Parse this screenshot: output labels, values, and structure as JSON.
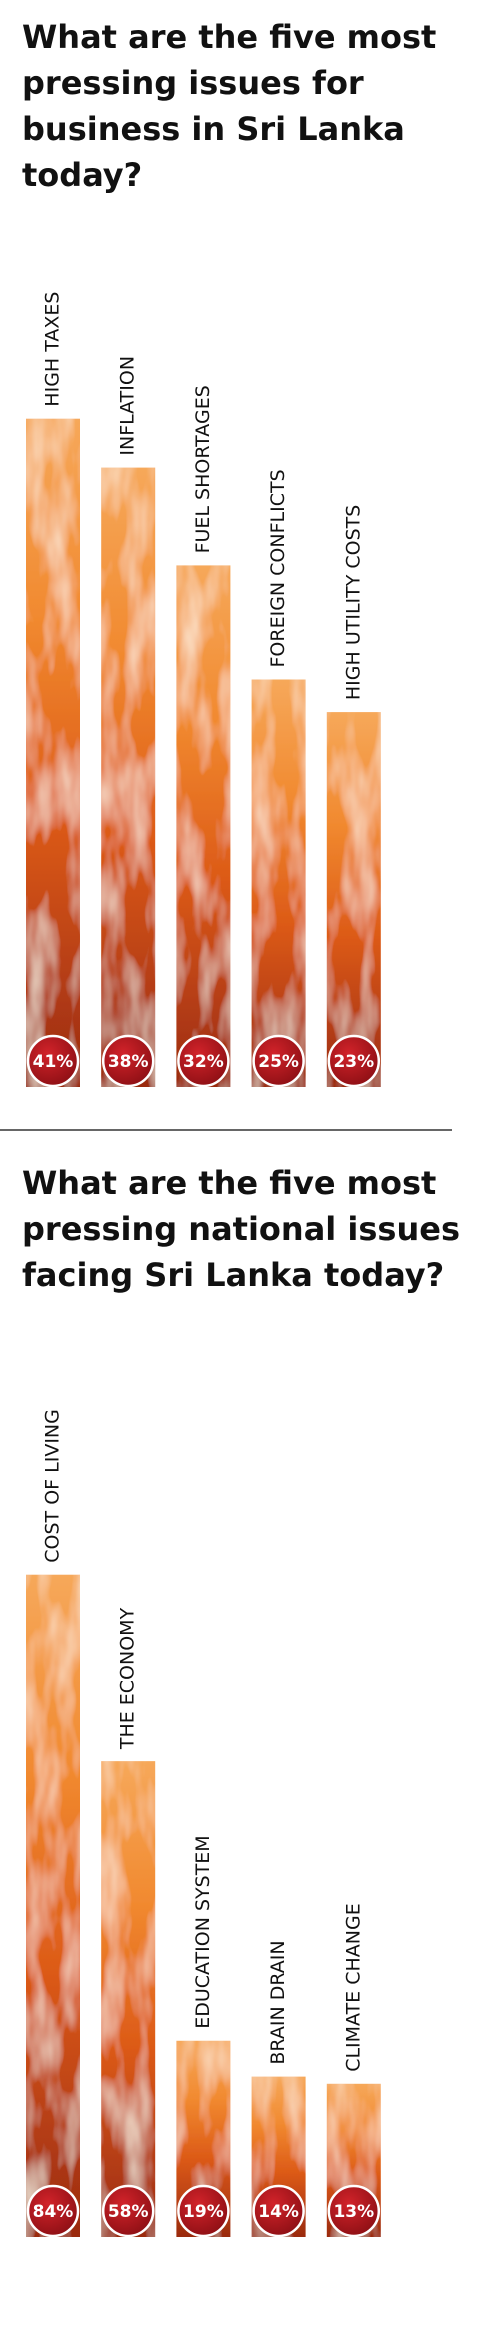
{
  "chart_data": [
    {
      "type": "bar",
      "title": "What are the five most pressing issues for business in Sri Lanka today?",
      "categories": [
        "HIGH TAXES",
        "INFLATION",
        "FUEL SHORTAGES",
        "FOREIGN CONFLICTS",
        "HIGH UTILITY COSTS"
      ],
      "values": [
        41,
        38,
        32,
        25,
        23
      ],
      "value_labels": [
        "41%",
        "38%",
        "32%",
        "25%",
        "23%"
      ]
    },
    {
      "type": "bar",
      "title": "What are the five most pressing national issues facing Sri Lanka today?",
      "categories": [
        "COST OF LIVING",
        "THE ECONOMY",
        "EDUCATION SYSTEM",
        "BRAIN DRAIN",
        "CLIMATE CHANGE"
      ],
      "values": [
        84,
        58,
        19,
        14,
        13
      ],
      "value_labels": [
        "84%",
        "58%",
        "19%",
        "14%",
        "13%"
      ]
    }
  ]
}
